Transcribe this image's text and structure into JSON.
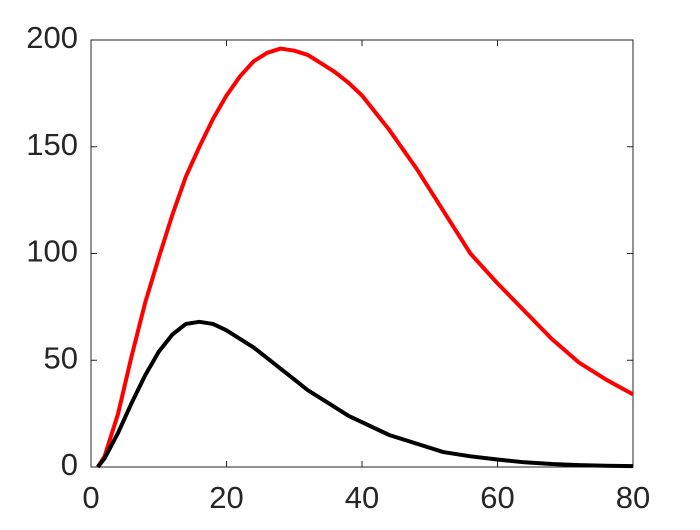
{
  "chart_data": {
    "type": "line",
    "x": [
      1,
      2,
      4,
      6,
      8,
      10,
      12,
      14,
      16,
      18,
      20,
      22,
      24,
      26,
      28,
      30,
      32,
      34,
      36,
      38,
      40,
      44,
      48,
      52,
      56,
      60,
      64,
      68,
      72,
      76,
      80
    ],
    "series": [
      {
        "color": "#ff0000",
        "values": [
          0,
          5,
          25,
          52,
          77,
          98,
          118,
          136,
          150,
          163,
          174,
          183,
          190,
          194,
          196,
          195,
          193,
          189,
          185,
          180,
          174,
          158,
          140,
          120,
          100,
          86,
          73,
          60,
          49,
          41,
          34
        ]
      },
      {
        "color": "#000000",
        "values": [
          0,
          4,
          16,
          30,
          43,
          54,
          62,
          67,
          68,
          67,
          64,
          60,
          56,
          51,
          46,
          41,
          36,
          32,
          28,
          24,
          21,
          15,
          11,
          7,
          5,
          3.5,
          2.2,
          1.4,
          0.9,
          0.6,
          0.4
        ]
      }
    ],
    "xlim": [
      0,
      80
    ],
    "xticks": [
      0,
      20,
      40,
      60,
      80
    ],
    "ylim": [
      0,
      200
    ],
    "yticks": [
      0,
      50,
      100,
      150,
      200
    ]
  }
}
